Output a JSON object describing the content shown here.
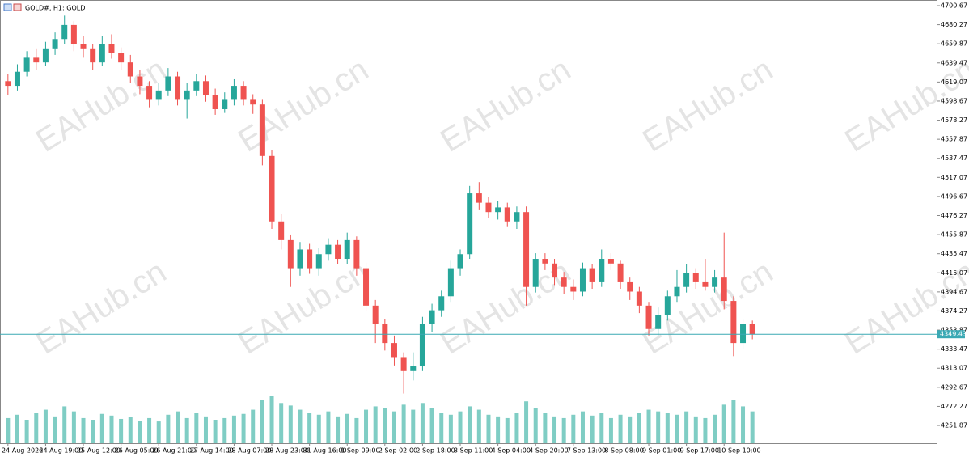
{
  "chart_data": {
    "type": "candlestick",
    "title": "GOLD#, H1: GOLD",
    "watermark": "EAHub.cn",
    "up_color": "#26a69a",
    "down_color": "#ef5350",
    "volume_color": "#7fcdc4",
    "price_line_color": "#3aa9b4",
    "ylim": [
      4232.87,
      4706.72
    ],
    "yticks": [
      4700.67,
      4680.27,
      4659.87,
      4639.47,
      4619.07,
      4598.67,
      4578.27,
      4557.87,
      4537.47,
      4517.07,
      4496.67,
      4476.27,
      4455.87,
      4435.47,
      4415.07,
      4394.67,
      4374.27,
      4353.87,
      4333.47,
      4313.07,
      4292.67,
      4272.27,
      4251.87
    ],
    "categories": [
      "24 Aug 2026",
      null,
      null,
      null,
      "24 Aug 19:00",
      null,
      null,
      null,
      "25 Aug 12:00",
      null,
      null,
      null,
      "26 Aug 05:00",
      null,
      null,
      null,
      "26 Aug 21:00",
      null,
      null,
      null,
      "27 Aug 14:00",
      null,
      null,
      null,
      "28 Aug 07:00",
      null,
      null,
      null,
      "28 Aug 23:00",
      null,
      null,
      null,
      "31 Aug 16:00",
      null,
      null,
      null,
      "1 Sep 09:00",
      null,
      null,
      null,
      "2 Sep 02:00",
      null,
      null,
      null,
      "2 Sep 18:00",
      null,
      null,
      null,
      "3 Sep 11:00",
      null,
      null,
      null,
      "4 Sep 04:00",
      null,
      null,
      null,
      "4 Sep 20:00",
      null,
      null,
      null,
      "7 Sep 13:00",
      null,
      null,
      null,
      "8 Sep 08:00",
      null,
      null,
      null,
      "9 Sep 01:00",
      null,
      null,
      null,
      "9 Sep 17:00",
      null,
      null,
      null,
      "10 Sep 10:00",
      null,
      null,
      null
    ],
    "candles": [
      [
        4620,
        4628,
        4605,
        4615
      ],
      [
        4615,
        4638,
        4610,
        4630
      ],
      [
        4630,
        4652,
        4625,
        4645
      ],
      [
        4645,
        4655,
        4632,
        4640
      ],
      [
        4640,
        4662,
        4636,
        4655
      ],
      [
        4655,
        4672,
        4648,
        4665
      ],
      [
        4665,
        4690,
        4660,
        4680
      ],
      [
        4680,
        4684,
        4652,
        4660
      ],
      [
        4660,
        4668,
        4645,
        4655
      ],
      [
        4655,
        4660,
        4632,
        4640
      ],
      [
        4640,
        4668,
        4636,
        4660
      ],
      [
        4660,
        4670,
        4644,
        4650
      ],
      [
        4650,
        4656,
        4632,
        4640
      ],
      [
        4640,
        4648,
        4618,
        4625
      ],
      [
        4625,
        4632,
        4606,
        4615
      ],
      [
        4615,
        4620,
        4592,
        4600
      ],
      [
        4600,
        4618,
        4594,
        4610
      ],
      [
        4610,
        4634,
        4604,
        4625
      ],
      [
        4625,
        4630,
        4594,
        4600
      ],
      [
        4600,
        4618,
        4580,
        4610
      ],
      [
        4610,
        4628,
        4604,
        4620
      ],
      [
        4620,
        4626,
        4598,
        4605
      ],
      [
        4605,
        4612,
        4584,
        4590
      ],
      [
        4590,
        4608,
        4586,
        4600
      ],
      [
        4600,
        4622,
        4594,
        4615
      ],
      [
        4615,
        4620,
        4594,
        4600
      ],
      [
        4600,
        4606,
        4585,
        4595
      ],
      [
        4595,
        4600,
        4530,
        4540
      ],
      [
        4540,
        4546,
        4462,
        4470
      ],
      [
        4470,
        4478,
        4440,
        4450
      ],
      [
        4450,
        4456,
        4400,
        4420
      ],
      [
        4420,
        4448,
        4412,
        4440
      ],
      [
        4440,
        4446,
        4414,
        4420
      ],
      [
        4420,
        4442,
        4412,
        4435
      ],
      [
        4435,
        4452,
        4428,
        4445
      ],
      [
        4445,
        4450,
        4424,
        4430
      ],
      [
        4430,
        4458,
        4424,
        4450
      ],
      [
        4450,
        4454,
        4412,
        4420
      ],
      [
        4420,
        4426,
        4374,
        4380
      ],
      [
        4380,
        4386,
        4340,
        4360
      ],
      [
        4360,
        4366,
        4332,
        4340
      ],
      [
        4340,
        4348,
        4316,
        4325
      ],
      [
        4325,
        4330,
        4286,
        4310
      ],
      [
        4310,
        4330,
        4300,
        4315
      ],
      [
        4315,
        4368,
        4310,
        4360
      ],
      [
        4360,
        4382,
        4352,
        4375
      ],
      [
        4375,
        4396,
        4368,
        4390
      ],
      [
        4390,
        4428,
        4384,
        4420
      ],
      [
        4420,
        4440,
        4412,
        4435
      ],
      [
        4435,
        4508,
        4430,
        4500
      ],
      [
        4500,
        4512,
        4482,
        4490
      ],
      [
        4490,
        4496,
        4474,
        4480
      ],
      [
        4480,
        4492,
        4472,
        4485
      ],
      [
        4485,
        4490,
        4464,
        4470
      ],
      [
        4470,
        4486,
        4462,
        4480
      ],
      [
        4480,
        4486,
        4380,
        4400
      ],
      [
        4400,
        4436,
        4394,
        4430
      ],
      [
        4430,
        4436,
        4418,
        4425
      ],
      [
        4425,
        4430,
        4402,
        4410
      ],
      [
        4410,
        4416,
        4392,
        4400
      ],
      [
        4400,
        4408,
        4386,
        4395
      ],
      [
        4395,
        4426,
        4390,
        4420
      ],
      [
        4420,
        4424,
        4398,
        4405
      ],
      [
        4405,
        4440,
        4400,
        4430
      ],
      [
        4430,
        4436,
        4418,
        4425
      ],
      [
        4425,
        4428,
        4398,
        4405
      ],
      [
        4405,
        4410,
        4386,
        4395
      ],
      [
        4395,
        4400,
        4372,
        4380
      ],
      [
        4380,
        4384,
        4348,
        4355
      ],
      [
        4355,
        4378,
        4348,
        4370
      ],
      [
        4370,
        4396,
        4364,
        4390
      ],
      [
        4390,
        4418,
        4384,
        4400
      ],
      [
        4400,
        4424,
        4394,
        4415
      ],
      [
        4415,
        4420,
        4398,
        4405
      ],
      [
        4405,
        4430,
        4396,
        4400
      ],
      [
        4400,
        4418,
        4394,
        4410
      ],
      [
        4410,
        4458,
        4376,
        4385
      ],
      [
        4385,
        4390,
        4326,
        4340
      ],
      [
        4340,
        4366,
        4334,
        4360
      ],
      [
        4360,
        4364,
        4344,
        4349.43
      ]
    ],
    "volume": [
      30,
      34,
      28,
      36,
      40,
      32,
      44,
      38,
      30,
      28,
      35,
      33,
      29,
      31,
      27,
      30,
      26,
      34,
      38,
      30,
      36,
      32,
      28,
      30,
      33,
      35,
      40,
      52,
      56,
      48,
      45,
      40,
      36,
      34,
      38,
      32,
      35,
      30,
      40,
      44,
      42,
      38,
      46,
      40,
      48,
      42,
      36,
      34,
      38,
      44,
      40,
      34,
      32,
      30,
      36,
      50,
      42,
      36,
      32,
      30,
      34,
      38,
      33,
      36,
      30,
      34,
      32,
      36,
      40,
      38,
      36,
      34,
      38,
      32,
      30,
      34,
      46,
      52,
      44,
      38
    ]
  }
}
